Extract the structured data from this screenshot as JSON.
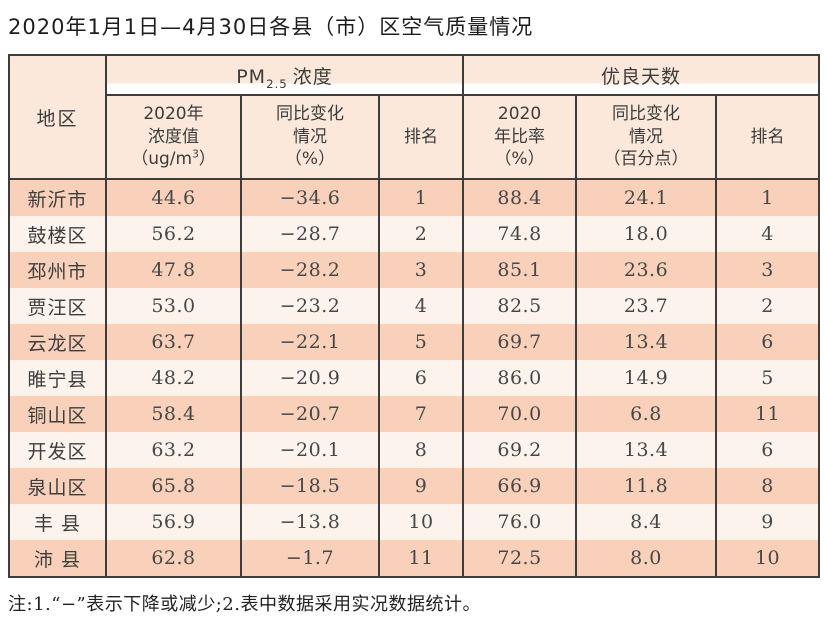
{
  "title": "2020年1月1日—4月30日各县（市）区空气质量情况",
  "table": {
    "header": {
      "region": "地区",
      "pm_group": {
        "prefix": "PM",
        "sub": "2.5",
        "suffix": "浓度"
      },
      "good_group": "优良天数",
      "pm_value": {
        "line1": "2020年",
        "line2": "浓度值",
        "line3_prefix": "（ug/m",
        "line3_sup": "3",
        "line3_suffix": "）"
      },
      "pm_change": {
        "line1": "同比变化",
        "line2": "情况",
        "line3": "（%）"
      },
      "pm_rank": "排名",
      "good_ratio": {
        "line1": "2020",
        "line2": "年比率",
        "line3": "（%）"
      },
      "good_change": {
        "line1": "同比变化",
        "line2": "情况",
        "line3": "（百分点）"
      },
      "good_rank": "排名"
    },
    "rows": [
      {
        "region": "新沂市",
        "pm_value": "44.6",
        "pm_change": "−34.6",
        "pm_rank": "1",
        "good_ratio": "88.4",
        "good_change": "24.1",
        "good_rank": "1"
      },
      {
        "region": "鼓楼区",
        "pm_value": "56.2",
        "pm_change": "−28.7",
        "pm_rank": "2",
        "good_ratio": "74.8",
        "good_change": "18.0",
        "good_rank": "4"
      },
      {
        "region": "邳州市",
        "pm_value": "47.8",
        "pm_change": "−28.2",
        "pm_rank": "3",
        "good_ratio": "85.1",
        "good_change": "23.6",
        "good_rank": "3"
      },
      {
        "region": "贾汪区",
        "pm_value": "53.0",
        "pm_change": "−23.2",
        "pm_rank": "4",
        "good_ratio": "82.5",
        "good_change": "23.7",
        "good_rank": "2"
      },
      {
        "region": "云龙区",
        "pm_value": "63.7",
        "pm_change": "−22.1",
        "pm_rank": "5",
        "good_ratio": "69.7",
        "good_change": "13.4",
        "good_rank": "6"
      },
      {
        "region": "睢宁县",
        "pm_value": "48.2",
        "pm_change": "−20.9",
        "pm_rank": "6",
        "good_ratio": "86.0",
        "good_change": "14.9",
        "good_rank": "5"
      },
      {
        "region": "铜山区",
        "pm_value": "58.4",
        "pm_change": "−20.7",
        "pm_rank": "7",
        "good_ratio": "70.0",
        "good_change": "6.8",
        "good_rank": "11"
      },
      {
        "region": "开发区",
        "pm_value": "63.2",
        "pm_change": "−20.1",
        "pm_rank": "8",
        "good_ratio": "69.2",
        "good_change": "13.4",
        "good_rank": "6"
      },
      {
        "region": "泉山区",
        "pm_value": "65.8",
        "pm_change": "−18.5",
        "pm_rank": "9",
        "good_ratio": "66.9",
        "good_change": "11.8",
        "good_rank": "8"
      },
      {
        "region": "丰 县",
        "pm_value": "56.9",
        "pm_change": "−13.8",
        "pm_rank": "10",
        "good_ratio": "76.0",
        "good_change": "8.4",
        "good_rank": "9"
      },
      {
        "region": "沛 县",
        "pm_value": "62.8",
        "pm_change": "−1.7",
        "pm_rank": "11",
        "good_ratio": "72.5",
        "good_change": "8.0",
        "good_rank": "10"
      }
    ]
  },
  "note": "注:1.“−”表示下降或减少;2.表中数据采用实况数据统计。",
  "colors": {
    "header_bg": "#fbe8da",
    "row_odd": "#f9d0ba",
    "row_even": "#fdf3ed",
    "border": "#3d3d3d"
  }
}
